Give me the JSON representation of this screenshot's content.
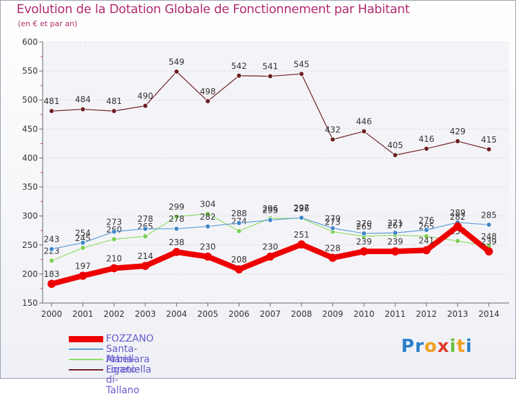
{
  "title": "Evolution de la Dotation Globale de Fonctionnement par Habitant",
  "subtitle": "(en € et par an)",
  "brand": {
    "letters": [
      "P",
      "r",
      "o",
      "x",
      "i",
      "t",
      "i"
    ],
    "colors": [
      "#2a7fc9",
      "#2a7fc9",
      "#f0a020",
      "#e23b2e",
      "#6cbf3c",
      "#f0a020",
      "#2a7fc9"
    ]
  },
  "chart_data": {
    "type": "line",
    "title": "Evolution de la Dotation Globale de Fonctionnement par Habitant",
    "xlabel": "",
    "ylabel": "(en € et par an)",
    "x": [
      "2000",
      "2001",
      "2002",
      "2003",
      "2004",
      "2005",
      "2006",
      "2007",
      "2008",
      "2009",
      "2010",
      "2011",
      "2012",
      "2013",
      "2014"
    ],
    "ylim": [
      150,
      600
    ],
    "yticks": [
      150,
      200,
      250,
      300,
      350,
      400,
      450,
      500,
      550,
      600
    ],
    "legend_position": "bottom-left",
    "series": [
      {
        "name": "Loreto-di-Tallano",
        "color": "#6b1f22",
        "dot": "#6b1f22",
        "width": 1.2,
        "values": [
          481,
          484,
          481,
          490,
          549,
          498,
          542,
          541,
          545,
          432,
          446,
          405,
          416,
          429,
          415
        ]
      },
      {
        "name": "Arbellara",
        "color": "#90dd66",
        "dot": "#7ccf52",
        "width": 1.2,
        "values": [
          223,
          245,
          260,
          265,
          299,
          304,
          274,
          296,
          296,
          273,
          265,
          267,
          265,
          257,
          248
        ]
      },
      {
        "name": "Santa-Maria-Figaniella",
        "color": "#5b9bd5",
        "dot": "#3f86c9",
        "width": 1.2,
        "values": [
          243,
          254,
          273,
          278,
          278,
          282,
          288,
          293,
          297,
          279,
          270,
          271,
          276,
          289,
          285
        ]
      },
      {
        "name": "FOZZANO",
        "color": "#ee0000",
        "dot": "#ee0000",
        "width": 8,
        "values": [
          183,
          197,
          210,
          214,
          238,
          230,
          208,
          230,
          251,
          228,
          239,
          239,
          241,
          282,
          239
        ]
      }
    ]
  }
}
